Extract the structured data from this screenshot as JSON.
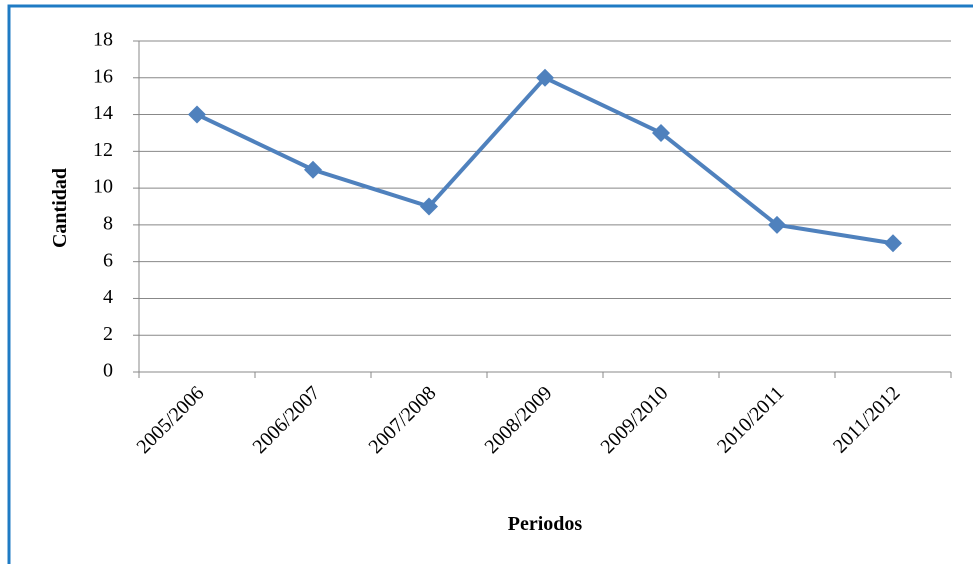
{
  "chart_data": {
    "type": "line",
    "xlabel": "Periodos",
    "ylabel": "Cantidad",
    "categories": [
      "2005/2006",
      "2006/2007",
      "2007/2008",
      "2008/2009",
      "2009/2010",
      "2010/2011",
      "2011/2012"
    ],
    "series": [
      {
        "name": "Cantidad",
        "color": "#4f81bd",
        "values": [
          14,
          11,
          9,
          16,
          13,
          8,
          7
        ]
      }
    ],
    "ylim": [
      0,
      18
    ],
    "yticks": [
      0,
      2,
      4,
      6,
      8,
      10,
      12,
      14,
      16,
      18
    ],
    "grid": true
  }
}
